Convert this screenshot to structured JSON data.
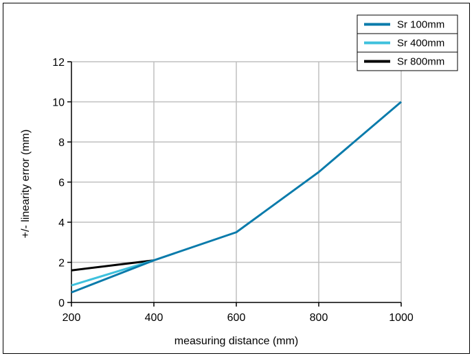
{
  "chart_data": {
    "type": "line",
    "xlabel": "measuring distance (mm)",
    "ylabel": "+/- linearity error (mm)",
    "xlim": [
      200,
      1000
    ],
    "ylim": [
      0,
      12
    ],
    "x_ticks": [
      200,
      400,
      600,
      800,
      1000
    ],
    "y_ticks": [
      0,
      2,
      4,
      6,
      8,
      10,
      12
    ],
    "grid": true,
    "legend": "top-right",
    "series": [
      {
        "name": "Sr 100mm",
        "color": "#0a7bab",
        "x": [
          200,
          400,
          600,
          800,
          1000
        ],
        "y": [
          0.5,
          2.1,
          3.5,
          6.5,
          10.0
        ]
      },
      {
        "name": "Sr 400mm",
        "color": "#3ec1dd",
        "x": [
          200,
          400
        ],
        "y": [
          0.85,
          2.1
        ]
      },
      {
        "name": "Sr 800mm",
        "color": "#000000",
        "x": [
          200,
          400
        ],
        "y": [
          1.6,
          2.1
        ]
      }
    ]
  }
}
